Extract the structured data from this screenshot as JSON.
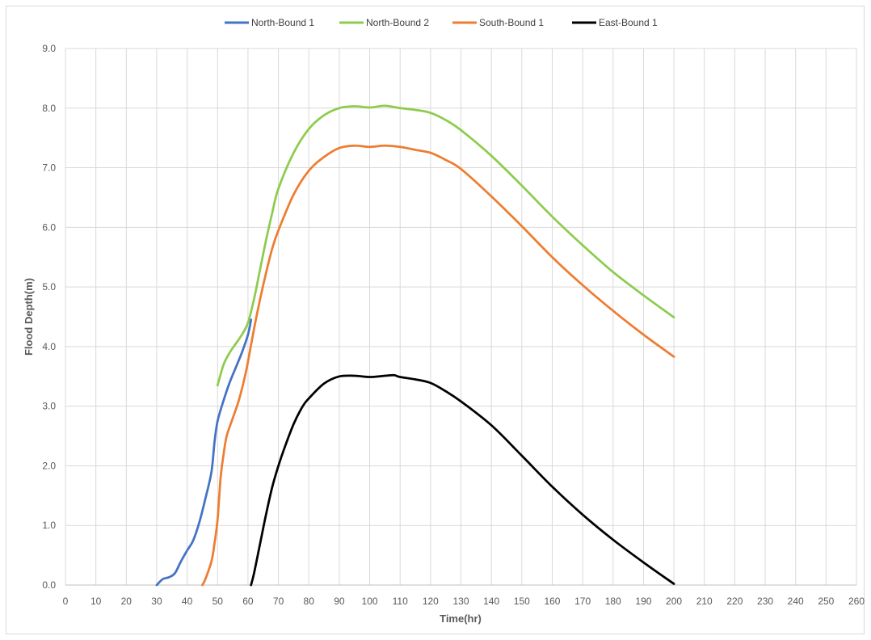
{
  "chart_data": {
    "type": "line",
    "xlabel": "Time(hr)",
    "ylabel": "Flood Depth(m)",
    "xlim": [
      0,
      260
    ],
    "ylim": [
      0,
      9
    ],
    "xticks": [
      0,
      10,
      20,
      30,
      40,
      50,
      60,
      70,
      80,
      90,
      100,
      110,
      120,
      130,
      140,
      150,
      160,
      170,
      180,
      190,
      200,
      210,
      220,
      230,
      240,
      250,
      260
    ],
    "yticks": [
      0,
      1,
      2,
      3,
      4,
      5,
      6,
      7,
      8,
      9
    ],
    "ytick_labels": [
      "0.0",
      "1.0",
      "2.0",
      "3.0",
      "4.0",
      "5.0",
      "6.0",
      "7.0",
      "8.0",
      "9.0"
    ],
    "grid": true,
    "legend_position": "top",
    "series": [
      {
        "name": "North-Bound 1",
        "color": "#4472c4",
        "points": [
          [
            30,
            0
          ],
          [
            32,
            0.1
          ],
          [
            34,
            0.13
          ],
          [
            36,
            0.2
          ],
          [
            38,
            0.4
          ],
          [
            40,
            0.58
          ],
          [
            42,
            0.75
          ],
          [
            44,
            1.05
          ],
          [
            46,
            1.45
          ],
          [
            48,
            1.9
          ],
          [
            49,
            2.4
          ],
          [
            50,
            2.75
          ],
          [
            52,
            3.1
          ],
          [
            54,
            3.4
          ],
          [
            56,
            3.65
          ],
          [
            58,
            3.9
          ],
          [
            60,
            4.2
          ],
          [
            61,
            4.45
          ]
        ]
      },
      {
        "name": "North-Bound 2",
        "color": "#8dcc4c",
        "points": [
          [
            50,
            3.35
          ],
          [
            52,
            3.7
          ],
          [
            54,
            3.9
          ],
          [
            56,
            4.05
          ],
          [
            58,
            4.2
          ],
          [
            60,
            4.4
          ],
          [
            62,
            4.8
          ],
          [
            64,
            5.3
          ],
          [
            66,
            5.8
          ],
          [
            68,
            6.25
          ],
          [
            70,
            6.65
          ],
          [
            75,
            7.25
          ],
          [
            80,
            7.65
          ],
          [
            85,
            7.88
          ],
          [
            90,
            8.0
          ],
          [
            95,
            8.03
          ],
          [
            100,
            8.01
          ],
          [
            105,
            8.04
          ],
          [
            110,
            8.0
          ],
          [
            115,
            7.97
          ],
          [
            120,
            7.92
          ],
          [
            125,
            7.8
          ],
          [
            130,
            7.63
          ],
          [
            140,
            7.2
          ],
          [
            150,
            6.7
          ],
          [
            160,
            6.18
          ],
          [
            170,
            5.7
          ],
          [
            180,
            5.25
          ],
          [
            190,
            4.86
          ],
          [
            200,
            4.49
          ]
        ]
      },
      {
        "name": "South-Bound 1",
        "color": "#ed7d31",
        "points": [
          [
            45,
            0
          ],
          [
            46,
            0.1
          ],
          [
            48,
            0.4
          ],
          [
            49,
            0.7
          ],
          [
            50,
            1.1
          ],
          [
            51,
            1.8
          ],
          [
            52,
            2.2
          ],
          [
            53,
            2.5
          ],
          [
            55,
            2.8
          ],
          [
            57,
            3.1
          ],
          [
            59,
            3.5
          ],
          [
            60,
            3.75
          ],
          [
            62,
            4.3
          ],
          [
            64,
            4.8
          ],
          [
            66,
            5.25
          ],
          [
            68,
            5.65
          ],
          [
            70,
            5.95
          ],
          [
            75,
            6.55
          ],
          [
            80,
            6.95
          ],
          [
            85,
            7.18
          ],
          [
            90,
            7.33
          ],
          [
            95,
            7.37
          ],
          [
            100,
            7.35
          ],
          [
            105,
            7.37
          ],
          [
            110,
            7.35
          ],
          [
            115,
            7.3
          ],
          [
            120,
            7.25
          ],
          [
            125,
            7.13
          ],
          [
            130,
            6.98
          ],
          [
            140,
            6.52
          ],
          [
            150,
            6.02
          ],
          [
            160,
            5.5
          ],
          [
            170,
            5.03
          ],
          [
            180,
            4.6
          ],
          [
            190,
            4.2
          ],
          [
            200,
            3.83
          ]
        ]
      },
      {
        "name": "East-Bound 1",
        "color": "#000000",
        "points": [
          [
            61,
            0
          ],
          [
            62,
            0.2
          ],
          [
            64,
            0.7
          ],
          [
            66,
            1.2
          ],
          [
            68,
            1.65
          ],
          [
            70,
            2.0
          ],
          [
            72,
            2.3
          ],
          [
            75,
            2.7
          ],
          [
            78,
            3.0
          ],
          [
            80,
            3.13
          ],
          [
            85,
            3.38
          ],
          [
            90,
            3.5
          ],
          [
            95,
            3.51
          ],
          [
            100,
            3.49
          ],
          [
            105,
            3.51
          ],
          [
            108,
            3.52
          ],
          [
            110,
            3.49
          ],
          [
            115,
            3.45
          ],
          [
            120,
            3.39
          ],
          [
            125,
            3.25
          ],
          [
            130,
            3.08
          ],
          [
            140,
            2.68
          ],
          [
            150,
            2.17
          ],
          [
            160,
            1.65
          ],
          [
            170,
            1.18
          ],
          [
            180,
            0.76
          ],
          [
            190,
            0.38
          ],
          [
            200,
            0.02
          ]
        ]
      }
    ]
  }
}
